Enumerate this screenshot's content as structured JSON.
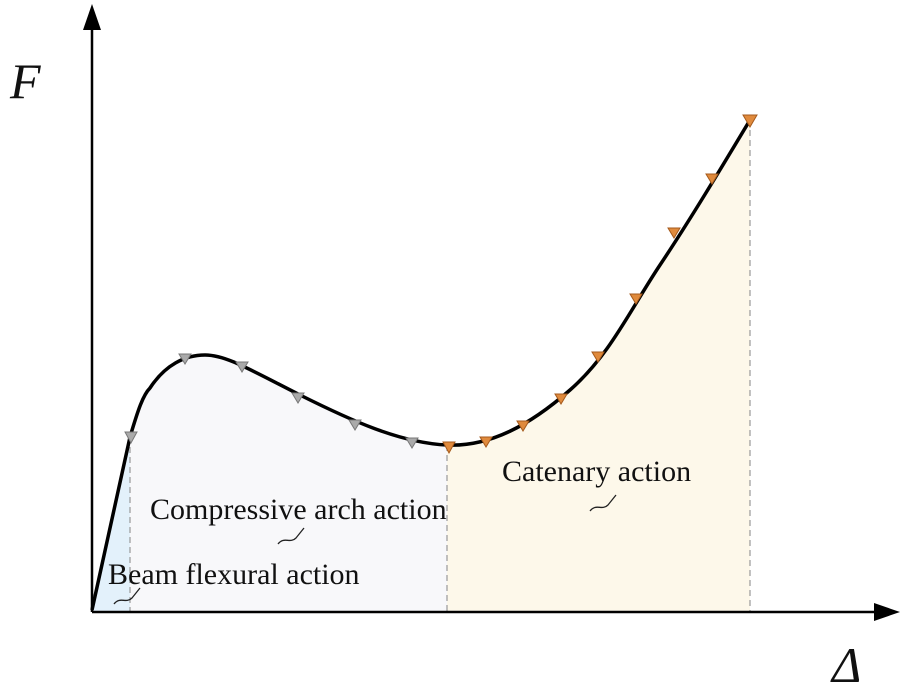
{
  "axes": {
    "y_label": "F",
    "x_label": "Δ"
  },
  "regions": [
    {
      "label": "Beam flexural action"
    },
    {
      "label": "Compressive arch action"
    },
    {
      "label": "Catenary action"
    }
  ]
}
